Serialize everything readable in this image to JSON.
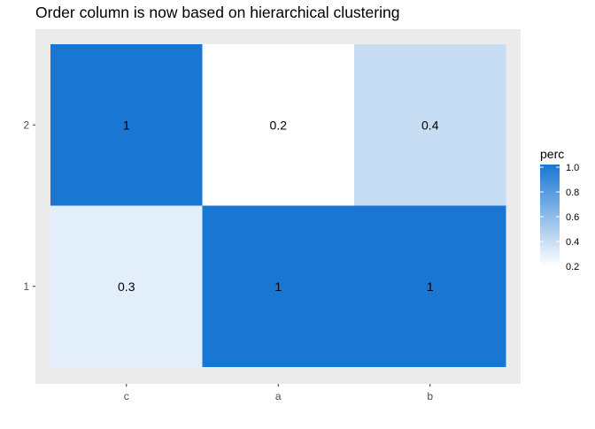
{
  "colors": {
    "panel_background": "#EBEBEB",
    "low": "#FFFFFF",
    "high": "#1976D2",
    "text": "#000000",
    "axis_text": "#4D4D4D",
    "tick": "#333333"
  },
  "chart_data": {
    "type": "heatmap",
    "title": "Order column is now based on hierarchical clustering",
    "xlabel": "",
    "ylabel": "",
    "x_categories": [
      "c",
      "a",
      "b"
    ],
    "y_categories": [
      "1",
      "2"
    ],
    "cells": [
      {
        "x": "c",
        "y": "2",
        "value": 1,
        "label": "1"
      },
      {
        "x": "a",
        "y": "2",
        "value": 0.2,
        "label": "0.2"
      },
      {
        "x": "b",
        "y": "2",
        "value": 0.4,
        "label": "0.4"
      },
      {
        "x": "c",
        "y": "1",
        "value": 0.3,
        "label": "0.3"
      },
      {
        "x": "a",
        "y": "1",
        "value": 1,
        "label": "1"
      },
      {
        "x": "b",
        "y": "1",
        "value": 1,
        "label": "1"
      }
    ],
    "legend": {
      "title": "perc",
      "position": "right",
      "min": 0.2,
      "max": 1.0,
      "breaks": [
        1.0,
        0.8,
        0.6,
        0.4,
        0.2
      ],
      "break_labels": [
        "1.0",
        "0.8",
        "0.6",
        "0.4",
        "0.2"
      ]
    },
    "grid": false
  }
}
